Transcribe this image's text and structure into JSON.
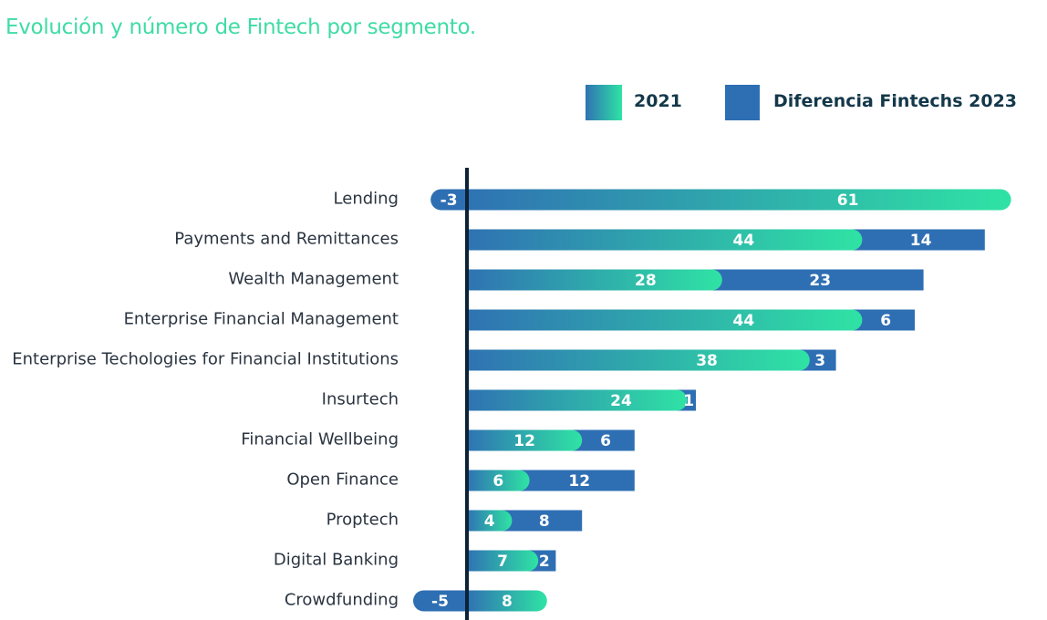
{
  "title": "Evolución y número de Fintech por segmento.",
  "legend": {
    "base_label": "2021",
    "diff_label": "Diferencia Fintechs 2023"
  },
  "colors": {
    "gradient_start": "#2f72b3",
    "gradient_end": "#2fe3a4",
    "diff": "#2e6fb3",
    "axis": "#0c2236",
    "title": "#3fdca5"
  },
  "chart_data": {
    "type": "bar",
    "orientation": "horizontal",
    "stacked": true,
    "title": "Evolución y número de Fintech por segmento.",
    "legend_position": "top-right",
    "categories": [
      "Lending",
      "Payments and Remittances",
      "Wealth Management",
      "Enterprise Financial Management",
      "Enterprise Techologies for Financial Institutions",
      "Insurtech",
      "Financial Wellbeing",
      "Open Finance",
      "Proptech",
      "Digital Banking",
      "Crowdfunding"
    ],
    "series": [
      {
        "name": "2021",
        "values": [
          61,
          44,
          28,
          44,
          38,
          24,
          12,
          6,
          4,
          7,
          8
        ]
      },
      {
        "name": "Diferencia Fintechs 2023",
        "values": [
          -3,
          14,
          23,
          6,
          3,
          1,
          6,
          12,
          8,
          2,
          -5
        ]
      }
    ]
  }
}
